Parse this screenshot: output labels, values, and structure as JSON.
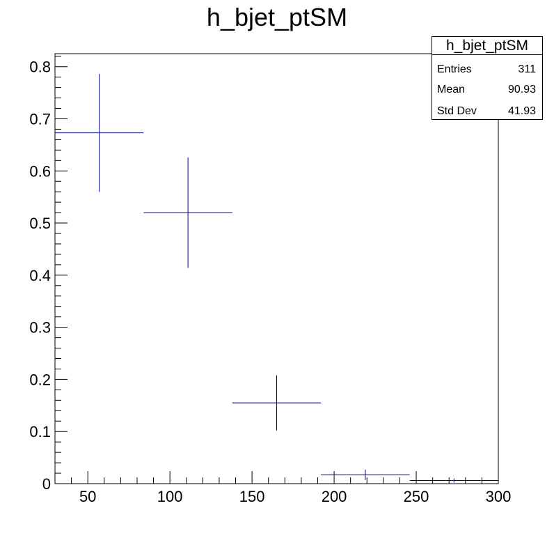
{
  "title": "h_bjet_ptSM",
  "stats": {
    "title": "h_bjet_ptSM",
    "rows": [
      {
        "key": "Entries",
        "value": "311"
      },
      {
        "key": "Mean",
        "value": "90.93"
      },
      {
        "key": "Std Dev",
        "value": "41.93"
      }
    ]
  },
  "chart_data": {
    "type": "scatter",
    "title": "h_bjet_ptSM",
    "xlabel": "",
    "ylabel": "",
    "xlim": [
      30,
      300
    ],
    "ylim": [
      0,
      0.825
    ],
    "x_ticks": [
      50,
      100,
      150,
      200,
      250,
      300
    ],
    "y_ticks": [
      0,
      0.1,
      0.2,
      0.3,
      0.4,
      0.5,
      0.6,
      0.7,
      0.8
    ],
    "x_tick_labels": [
      "50",
      "100",
      "150",
      "200",
      "250",
      "300"
    ],
    "y_tick_labels": [
      "0",
      "0.1",
      "0.2",
      "0.3",
      "0.4",
      "0.5",
      "0.6",
      "0.7",
      "0.8"
    ],
    "points": [
      {
        "x_low": 30,
        "x_high": 84,
        "x": 57,
        "y": 0.673,
        "err": 0.113
      },
      {
        "x_low": 84,
        "x_high": 138,
        "x": 111,
        "y": 0.52,
        "err": 0.106
      },
      {
        "x_low": 138,
        "x_high": 192,
        "x": 165,
        "y": 0.155,
        "err": 0.053
      },
      {
        "x_low": 192,
        "x_high": 246,
        "x": 219,
        "y": 0.017,
        "err": 0.01
      },
      {
        "x_low": 246,
        "x_high": 300,
        "x": 273,
        "y": 0.006,
        "err": 0.004
      }
    ],
    "marker_color": "#000080",
    "grid": false,
    "legend": "top-right"
  }
}
